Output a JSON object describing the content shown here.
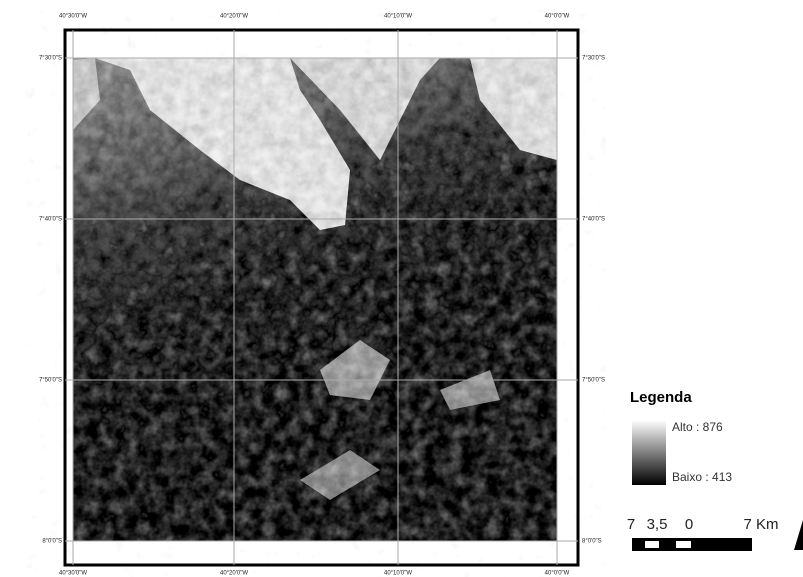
{
  "map": {
    "top_labels": [
      "40°30'0\"W",
      "40°20'0\"W",
      "40°10'0\"W",
      "40°0'0\"W"
    ],
    "bottom_labels": [
      "40°30'0\"W",
      "40°20'0\"W",
      "40°10'0\"W",
      "40°0'0\"W"
    ],
    "left_labels": [
      "7°30'0\"S",
      "7°40'0\"S",
      "7°50'0\"S",
      "8°0'0\"S"
    ],
    "right_labels": [
      "7°30'0\"S",
      "7°40'0\"S",
      "7°50'0\"S",
      "8°0'0\"S"
    ],
    "legend": {
      "title": "Legenda",
      "high": "Alto : 876",
      "low": "Baixo : 413"
    },
    "scale": {
      "labels": [
        "7",
        "3,5",
        "0",
        "7 Km"
      ]
    }
  }
}
